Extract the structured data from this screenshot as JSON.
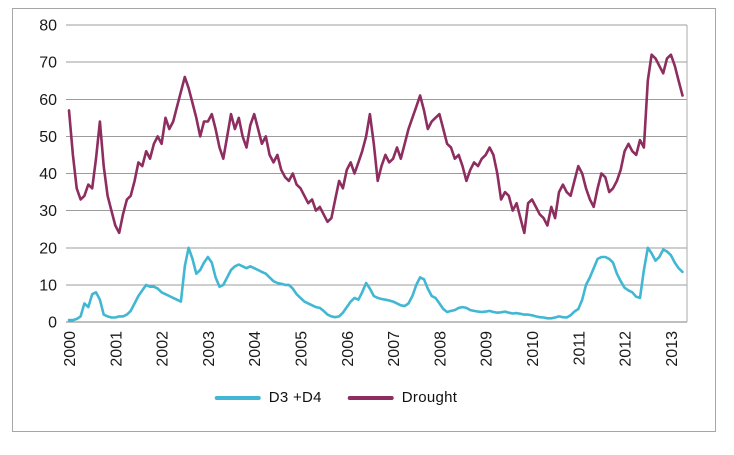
{
  "legend": {
    "items": [
      {
        "label": "D3 +D4",
        "color": "#41b7d3"
      },
      {
        "label": "Drought",
        "color": "#8e2d5f"
      }
    ]
  },
  "chart_data": {
    "type": "line",
    "title": "",
    "xlabel": "",
    "ylabel": "",
    "x_tick_labels": [
      "2000",
      "2001",
      "2002",
      "2003",
      "2004",
      "2005",
      "2006",
      "2007",
      "2008",
      "2009",
      "2010",
      "2011",
      "2012",
      "2013"
    ],
    "y_ticks": [
      0,
      10,
      20,
      30,
      40,
      50,
      60,
      70,
      80
    ],
    "ylim": [
      0,
      80
    ],
    "xlim_years": [
      2000.0,
      2013.4
    ],
    "x_resolution": "monthly",
    "grid": "horizontal",
    "legend_position": "bottom",
    "colors": {
      "gridline": "#9c9c9c",
      "axis": "#7f7f7f",
      "plot_right_border": "#ababab",
      "frame_border": "#a6a6a6"
    },
    "series": [
      {
        "name": "D3 +D4",
        "color": "#41b7d3",
        "values": [
          0.5,
          0.5,
          0.8,
          1.5,
          5,
          4,
          7.5,
          8,
          6,
          2,
          1.5,
          1.2,
          1.2,
          1.5,
          1.5,
          2,
          3,
          5,
          7,
          8.5,
          10,
          9.5,
          9.5,
          9,
          8,
          7.5,
          7,
          6.5,
          6,
          5.5,
          15,
          20,
          17,
          13,
          14,
          16,
          17.5,
          16,
          12,
          9.5,
          10,
          12,
          14,
          15,
          15.5,
          15,
          14.5,
          15,
          14.5,
          14,
          13.5,
          13,
          12,
          11,
          10.5,
          10.3,
          10,
          10,
          9,
          7.5,
          6.5,
          5.5,
          5,
          4.5,
          4,
          3.8,
          3,
          2,
          1.5,
          1.3,
          1.5,
          2.5,
          4,
          5.5,
          6.5,
          6,
          8,
          10.5,
          9,
          7,
          6.5,
          6.2,
          6,
          5.8,
          5.5,
          5,
          4.5,
          4.3,
          5,
          7,
          10,
          12,
          11.5,
          9,
          7,
          6.5,
          5,
          3.5,
          2.7,
          3,
          3.2,
          3.8,
          4,
          3.8,
          3.2,
          3,
          2.8,
          2.7,
          2.8,
          3,
          2.7,
          2.5,
          2.6,
          2.8,
          2.5,
          2.3,
          2.4,
          2.2,
          2,
          2,
          1.8,
          1.5,
          1.3,
          1.2,
          1,
          1,
          1.2,
          1.5,
          1.3,
          1.2,
          1.8,
          2.8,
          3.5,
          6,
          10,
          12,
          14.5,
          17,
          17.5,
          17.5,
          17,
          16,
          13,
          11,
          9.2,
          8.5,
          8,
          6.8,
          6.5,
          14,
          20,
          18.5,
          16.5,
          17.5,
          19.5,
          19,
          18,
          16,
          14.5,
          13.5
        ]
      },
      {
        "name": "Drought",
        "color": "#8e2d5f",
        "values": [
          57,
          45,
          36,
          33,
          34,
          37,
          36,
          44,
          54,
          42,
          34,
          30,
          26,
          24,
          29,
          33,
          34,
          38,
          43,
          42,
          46,
          44,
          48,
          50,
          48,
          55,
          52,
          54,
          58,
          62,
          66,
          63,
          59,
          55,
          50,
          54,
          54,
          56,
          52,
          47,
          44,
          50,
          56,
          52,
          55,
          50,
          47,
          53,
          56,
          52,
          48,
          50,
          45,
          43,
          45,
          41,
          39,
          38,
          40,
          37,
          36,
          34,
          32,
          33,
          30,
          31,
          29,
          27,
          28,
          33,
          38,
          36,
          41,
          43,
          40,
          43,
          46,
          50,
          56,
          48,
          38,
          42,
          45,
          43,
          44,
          47,
          44,
          48,
          52,
          55,
          58,
          61,
          57,
          52,
          54,
          55,
          56,
          52,
          48,
          47,
          44,
          45,
          42,
          38,
          41,
          43,
          42,
          44,
          45,
          47,
          45,
          40,
          33,
          35,
          34,
          30,
          32,
          28,
          24,
          32,
          33,
          31,
          29,
          28,
          26,
          31,
          28,
          35,
          37,
          35,
          34,
          38,
          42,
          40,
          36,
          33,
          31,
          36,
          40,
          39,
          35,
          36,
          38,
          41,
          46,
          48,
          46,
          45,
          49,
          47,
          65,
          72,
          71,
          69,
          67,
          71,
          72,
          69,
          65,
          61
        ]
      }
    ]
  }
}
